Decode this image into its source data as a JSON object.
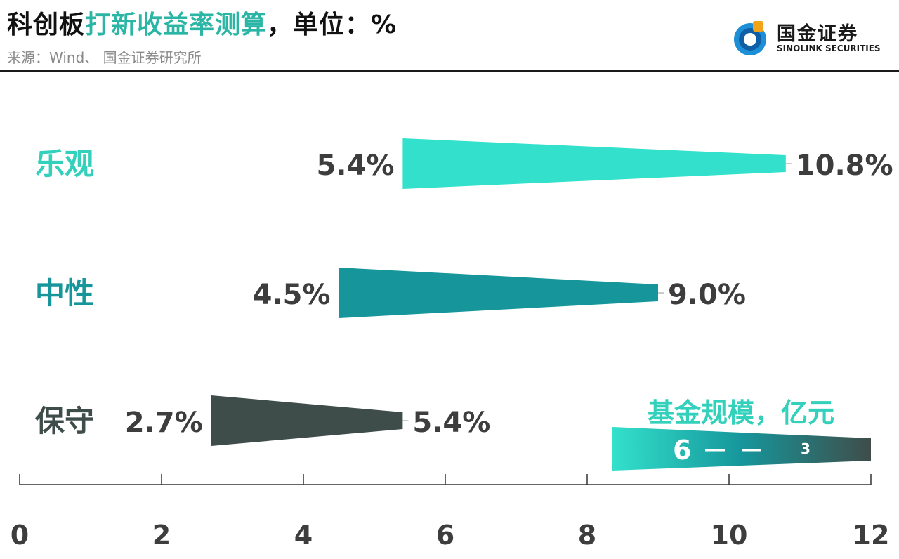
{
  "header": {
    "title_prefix": "科创板",
    "title_highlight": "打新收益率测算",
    "title_suffix": "，单位：%",
    "source": "来源：Wind、 国金证券研究所"
  },
  "logo": {
    "cn": "国金证券",
    "en": "SINOLINK SECURITIES"
  },
  "colors": {
    "optimistic": "#33e0cc",
    "neutral": "#16969b",
    "conservative": "#3f4d4a",
    "title_highlight": "#2bb5a4",
    "legend_text": "#33d1bb"
  },
  "chart_data": {
    "type": "bar",
    "title": "科创板打新收益率测算，单位：%",
    "xlim": [
      0,
      12
    ],
    "x_ticks": [
      "0",
      "2",
      "4",
      "6",
      "8",
      "10",
      "12"
    ],
    "series": [
      {
        "name": "乐观",
        "start": 5.4,
        "end": 10.8,
        "start_label": "5.4%",
        "end_label": "10.8%"
      },
      {
        "name": "中性",
        "start": 4.5,
        "end": 9.0,
        "start_label": "4.5%",
        "end_label": "9.0%"
      },
      {
        "name": "保守",
        "start": 2.7,
        "end": 5.4,
        "start_label": "2.7%",
        "end_label": "5.4%"
      }
    ],
    "legend": {
      "title": "基金规模，亿元",
      "left_label": "6",
      "right_label": "3"
    }
  }
}
